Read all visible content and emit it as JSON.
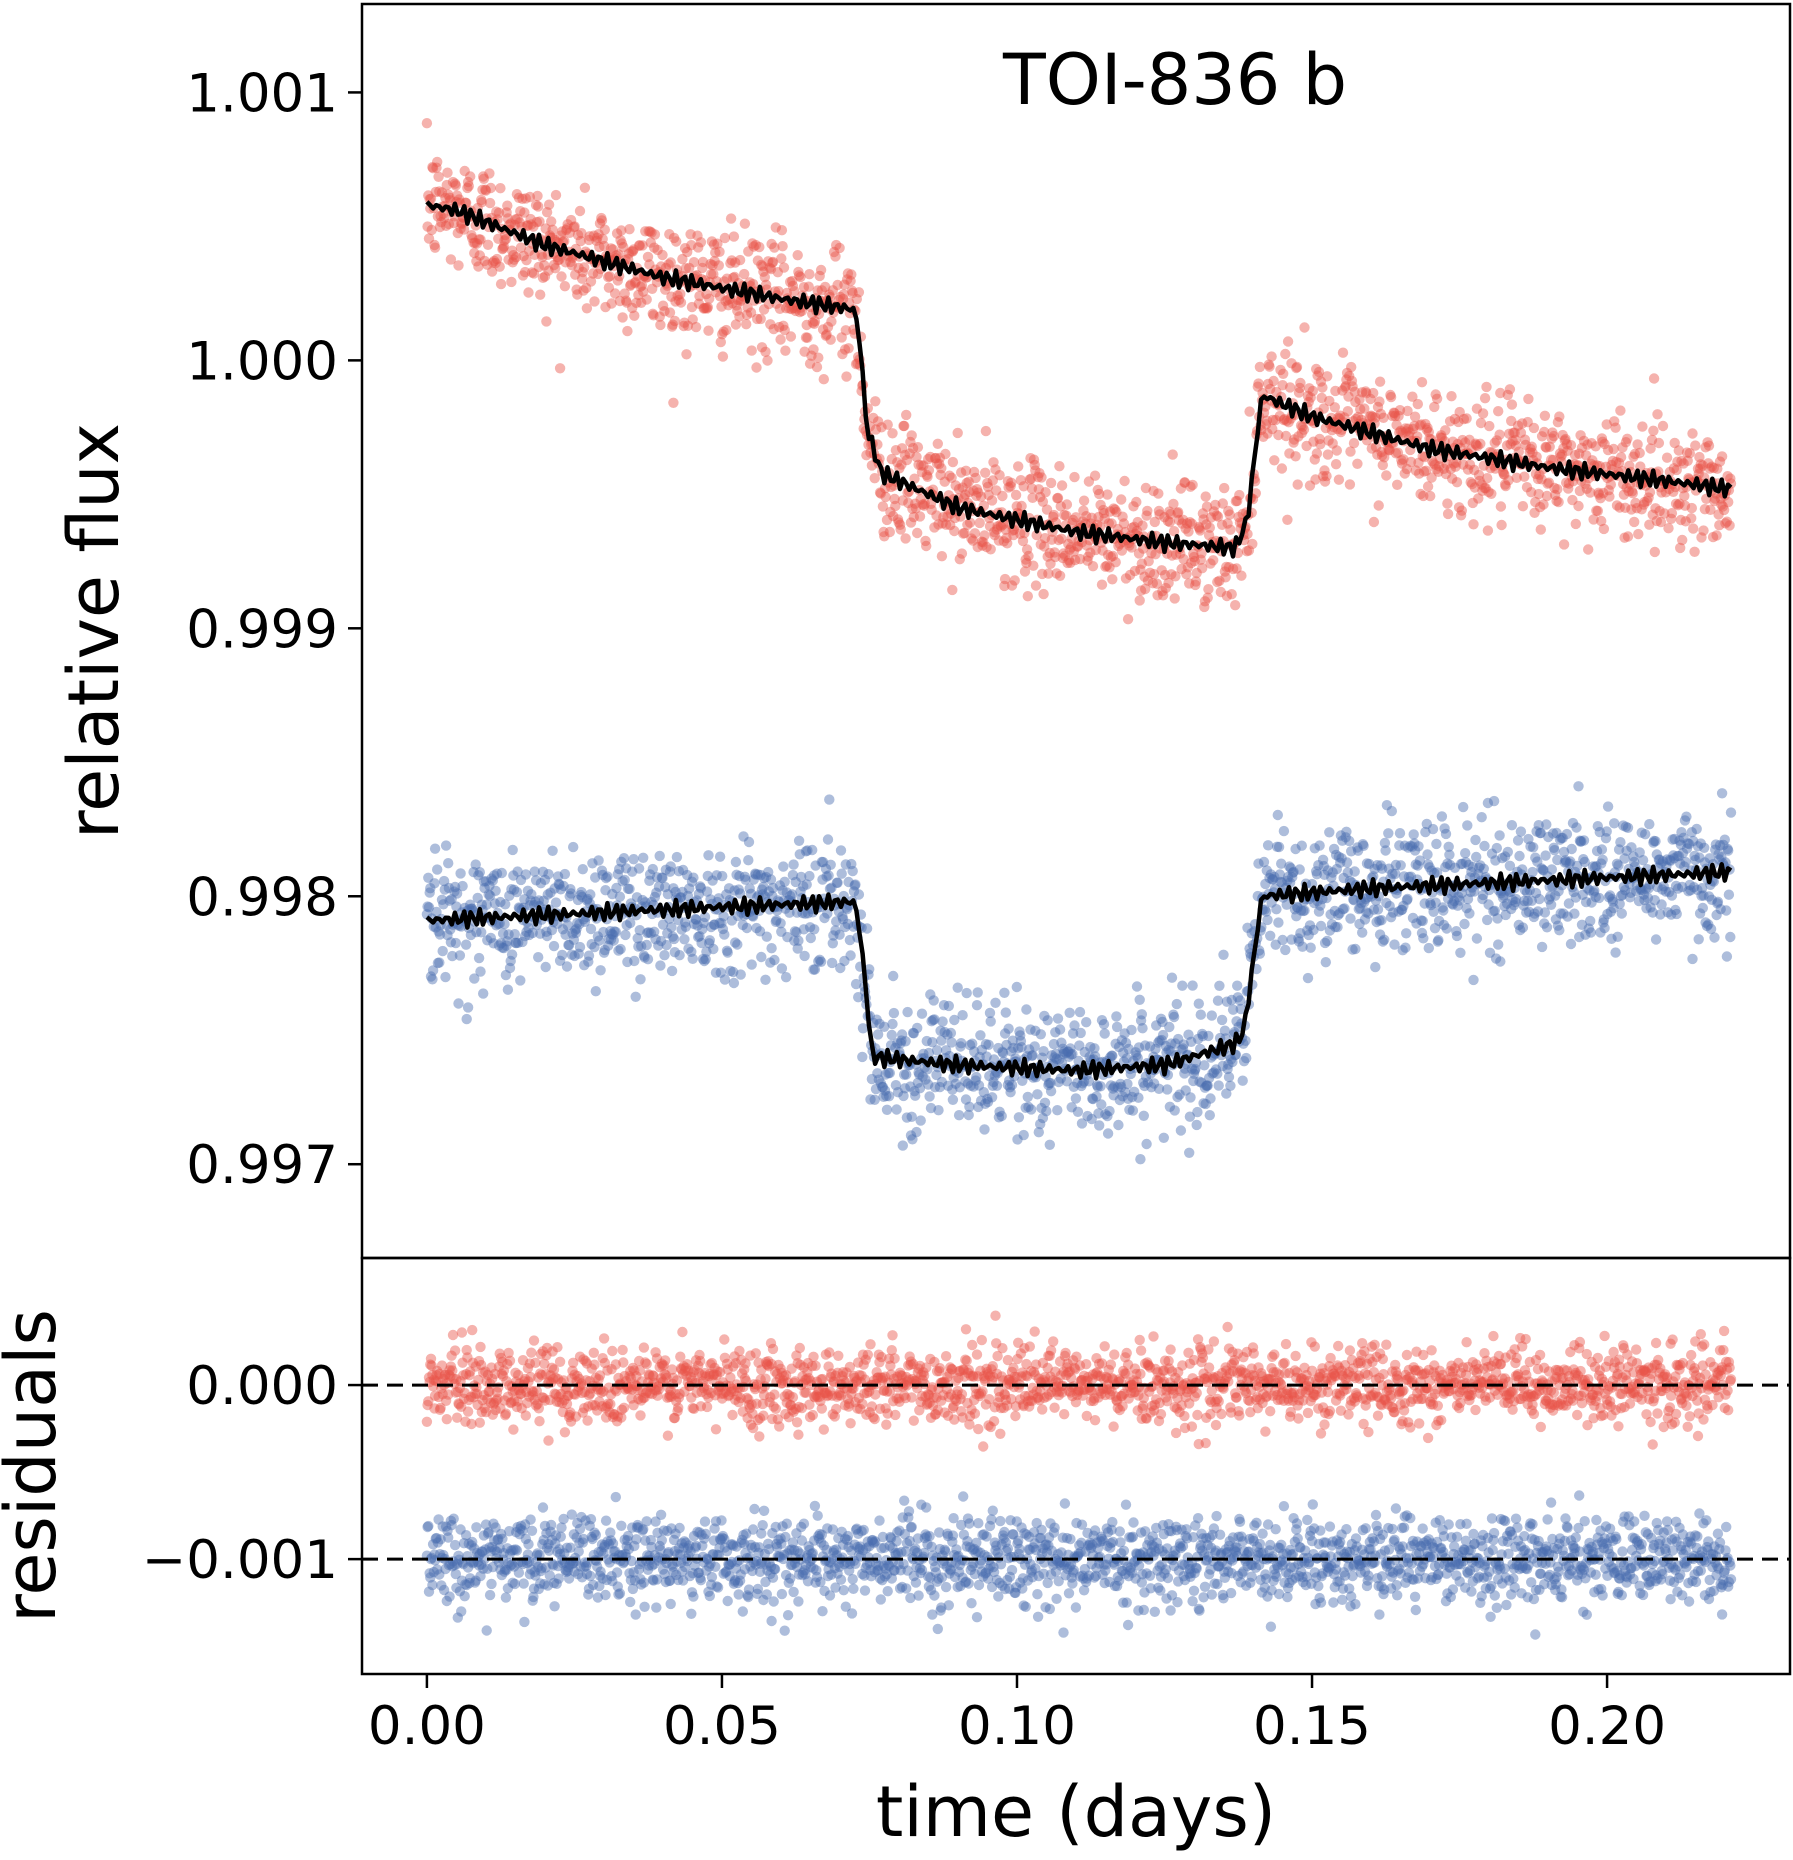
{
  "chart_data": [
    {
      "panel": "top",
      "type": "scatter",
      "title": "TOI-836 b",
      "xlabel": "",
      "ylabel": "relative flux",
      "xlim": [
        -0.011,
        0.231
      ],
      "ylim": [
        0.99665,
        1.00133
      ],
      "yticks": [
        0.997,
        0.998,
        0.999,
        1.0,
        1.001
      ],
      "ytick_labels": [
        "0.997",
        "0.998",
        "0.999",
        "1.000",
        "1.001"
      ],
      "grid": false,
      "series": [
        {
          "name": "red light curve",
          "color": "#e8544a",
          "marker": "dot",
          "x_range": [
            0.0,
            0.221
          ],
          "scatter_sigma": 0.00011,
          "model_points": [
            [
              0.0,
              1.00058
            ],
            [
              0.005,
              1.00056
            ],
            [
              0.02,
              1.00043
            ],
            [
              0.04,
              1.00031
            ],
            [
              0.06,
              1.00023
            ],
            [
              0.0725,
              1.00019
            ],
            [
              0.0735,
              1.00005
            ],
            [
              0.0745,
              0.99975
            ],
            [
              0.077,
              0.99958
            ],
            [
              0.09,
              0.99945
            ],
            [
              0.11,
              0.99936
            ],
            [
              0.125,
              0.99932
            ],
            [
              0.137,
              0.9993
            ],
            [
              0.139,
              0.9994
            ],
            [
              0.1415,
              0.99987
            ],
            [
              0.15,
              0.99979
            ],
            [
              0.17,
              0.99967
            ],
            [
              0.19,
              0.9996
            ],
            [
              0.21,
              0.99955
            ],
            [
              0.221,
              0.99952
            ]
          ]
        },
        {
          "name": "blue light curve",
          "color": "#4a6db0",
          "marker": "dot",
          "x_range": [
            0.0,
            0.221
          ],
          "scatter_sigma": 0.00012,
          "model_points": [
            [
              0.0,
              0.99791
            ],
            [
              0.02,
              0.99793
            ],
            [
              0.05,
              0.99796
            ],
            [
              0.0725,
              0.99798
            ],
            [
              0.0735,
              0.99785
            ],
            [
              0.0755,
              0.9974
            ],
            [
              0.09,
              0.99737
            ],
            [
              0.11,
              0.99735
            ],
            [
              0.125,
              0.99737
            ],
            [
              0.137,
              0.99745
            ],
            [
              0.1385,
              0.9975
            ],
            [
              0.1415,
              0.998
            ],
            [
              0.16,
              0.99803
            ],
            [
              0.19,
              0.99806
            ],
            [
              0.221,
              0.99809
            ]
          ]
        }
      ]
    },
    {
      "panel": "bottom",
      "type": "scatter",
      "title": "",
      "xlabel": "time (days)",
      "ylabel": "residuals",
      "xlim": [
        -0.011,
        0.231
      ],
      "ylim": [
        -0.00166,
        0.00073
      ],
      "xticks": [
        0.0,
        0.05,
        0.1,
        0.15,
        0.2
      ],
      "xtick_labels": [
        "0.00",
        "0.05",
        "0.10",
        "0.15",
        "0.20"
      ],
      "yticks": [
        -0.001,
        0.0
      ],
      "ytick_labels": [
        "−0.001",
        "0.000"
      ],
      "reference_lines": [
        0.0,
        -0.001
      ],
      "reference_style": "dashed",
      "series": [
        {
          "name": "red residuals",
          "color": "#e8544a",
          "center": 0.0,
          "scatter_sigma": 0.00011
        },
        {
          "name": "blue residuals",
          "color": "#4a6db0",
          "center": -0.001,
          "scatter_sigma": 0.00012
        }
      ]
    }
  ]
}
